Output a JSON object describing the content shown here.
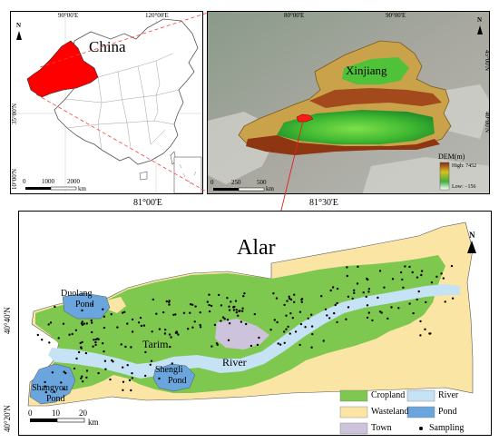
{
  "china_panel": {
    "title": "China",
    "lon_labels": [
      "90°00'E",
      "120°00'E"
    ],
    "lat_labels": [
      "35°00'N",
      "10°00'N"
    ],
    "scale_labels": [
      "0",
      "1000",
      "2000"
    ],
    "scale_unit": "km",
    "north_label": "N",
    "colors": {
      "xinjiang": "#ff0000",
      "outline": "#555555"
    }
  },
  "xinjiang_panel": {
    "title": "Xinjiang",
    "lon_labels": [
      "80°00'E",
      "90°00'E"
    ],
    "lat_labels": [
      "45°00'N",
      "40°00'N"
    ],
    "scale_labels": [
      "0",
      "250",
      "500"
    ],
    "scale_unit": "km",
    "north_label": "N",
    "dem_legend": {
      "title": "DEM(m)",
      "high": "High: 7452",
      "low": "Low: −156"
    }
  },
  "alar_panel": {
    "title": "Alar",
    "lon_labels": [
      "81°00'E",
      "81°30'E"
    ],
    "lat_labels": [
      "40°40'N",
      "40°20'N"
    ],
    "scale_labels": [
      "0",
      "10",
      "20"
    ],
    "scale_unit": "km",
    "north_label": "N",
    "place_labels": {
      "duolang_1": "Duolang",
      "duolang_2": "Pond",
      "tarim": "Tarim",
      "river": "River",
      "shengli_1": "Shengli",
      "shengli_2": "Pond",
      "shangyou_1": "Shangyou",
      "shangyou_2": "Pond"
    },
    "legend": [
      {
        "label": "Cropland",
        "color": "#7ec850"
      },
      {
        "label": "River",
        "color": "#c6e2f5"
      },
      {
        "label": "Wasteland",
        "color": "#fbe5a5"
      },
      {
        "label": "Pond",
        "color": "#6aa6dd"
      },
      {
        "label": "Town",
        "color": "#cdc3dc"
      },
      {
        "label": "Sampling",
        "color": "#000000"
      }
    ]
  }
}
